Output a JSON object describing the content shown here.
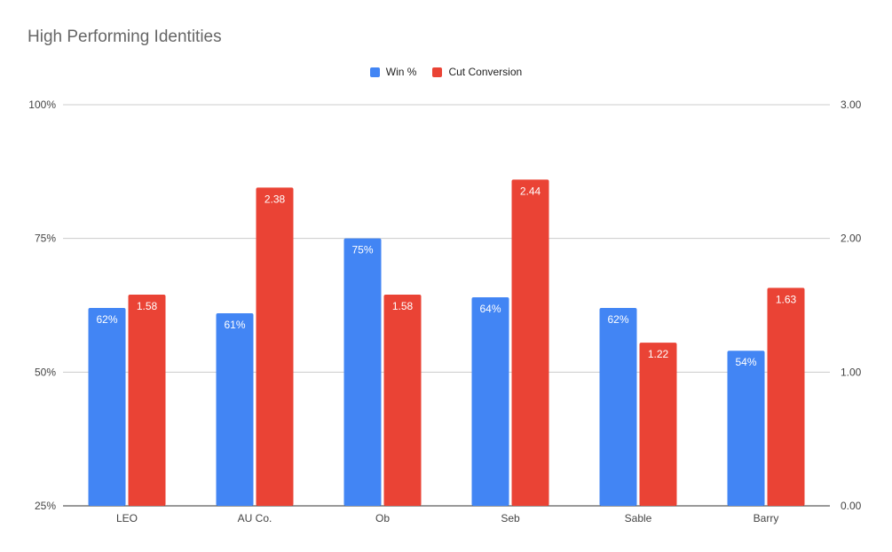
{
  "colors": {
    "win": "#4285f4",
    "cut": "#ea4335",
    "grid": "#cccccc",
    "axis_text": "#444444",
    "title_text": "#666666"
  },
  "chart_data": {
    "type": "bar",
    "title": "High Performing Identities",
    "categories": [
      "LEO",
      "AU Co.",
      "Ob",
      "Seb",
      "Sable",
      "Barry"
    ],
    "series": [
      {
        "name": "Win %",
        "axis": "left",
        "values": [
          62,
          61,
          75,
          64,
          62,
          54
        ],
        "labels": [
          "62%",
          "61%",
          "75%",
          "64%",
          "62%",
          "54%"
        ]
      },
      {
        "name": "Cut Conversion",
        "axis": "right",
        "values": [
          1.58,
          2.38,
          1.58,
          2.44,
          1.22,
          1.63
        ],
        "labels": [
          "1.58",
          "2.38",
          "1.58",
          "2.44",
          "1.22",
          "1.63"
        ]
      }
    ],
    "left_axis": {
      "min": 25,
      "max": 100,
      "ticks": [
        "25%",
        "50%",
        "75%",
        "100%"
      ],
      "tick_values": [
        25,
        50,
        75,
        100
      ]
    },
    "right_axis": {
      "min": 0,
      "max": 3,
      "ticks": [
        "0.00",
        "1.00",
        "2.00",
        "3.00"
      ],
      "tick_values": [
        0,
        1,
        2,
        3
      ]
    },
    "grid": true,
    "legend": "top"
  }
}
